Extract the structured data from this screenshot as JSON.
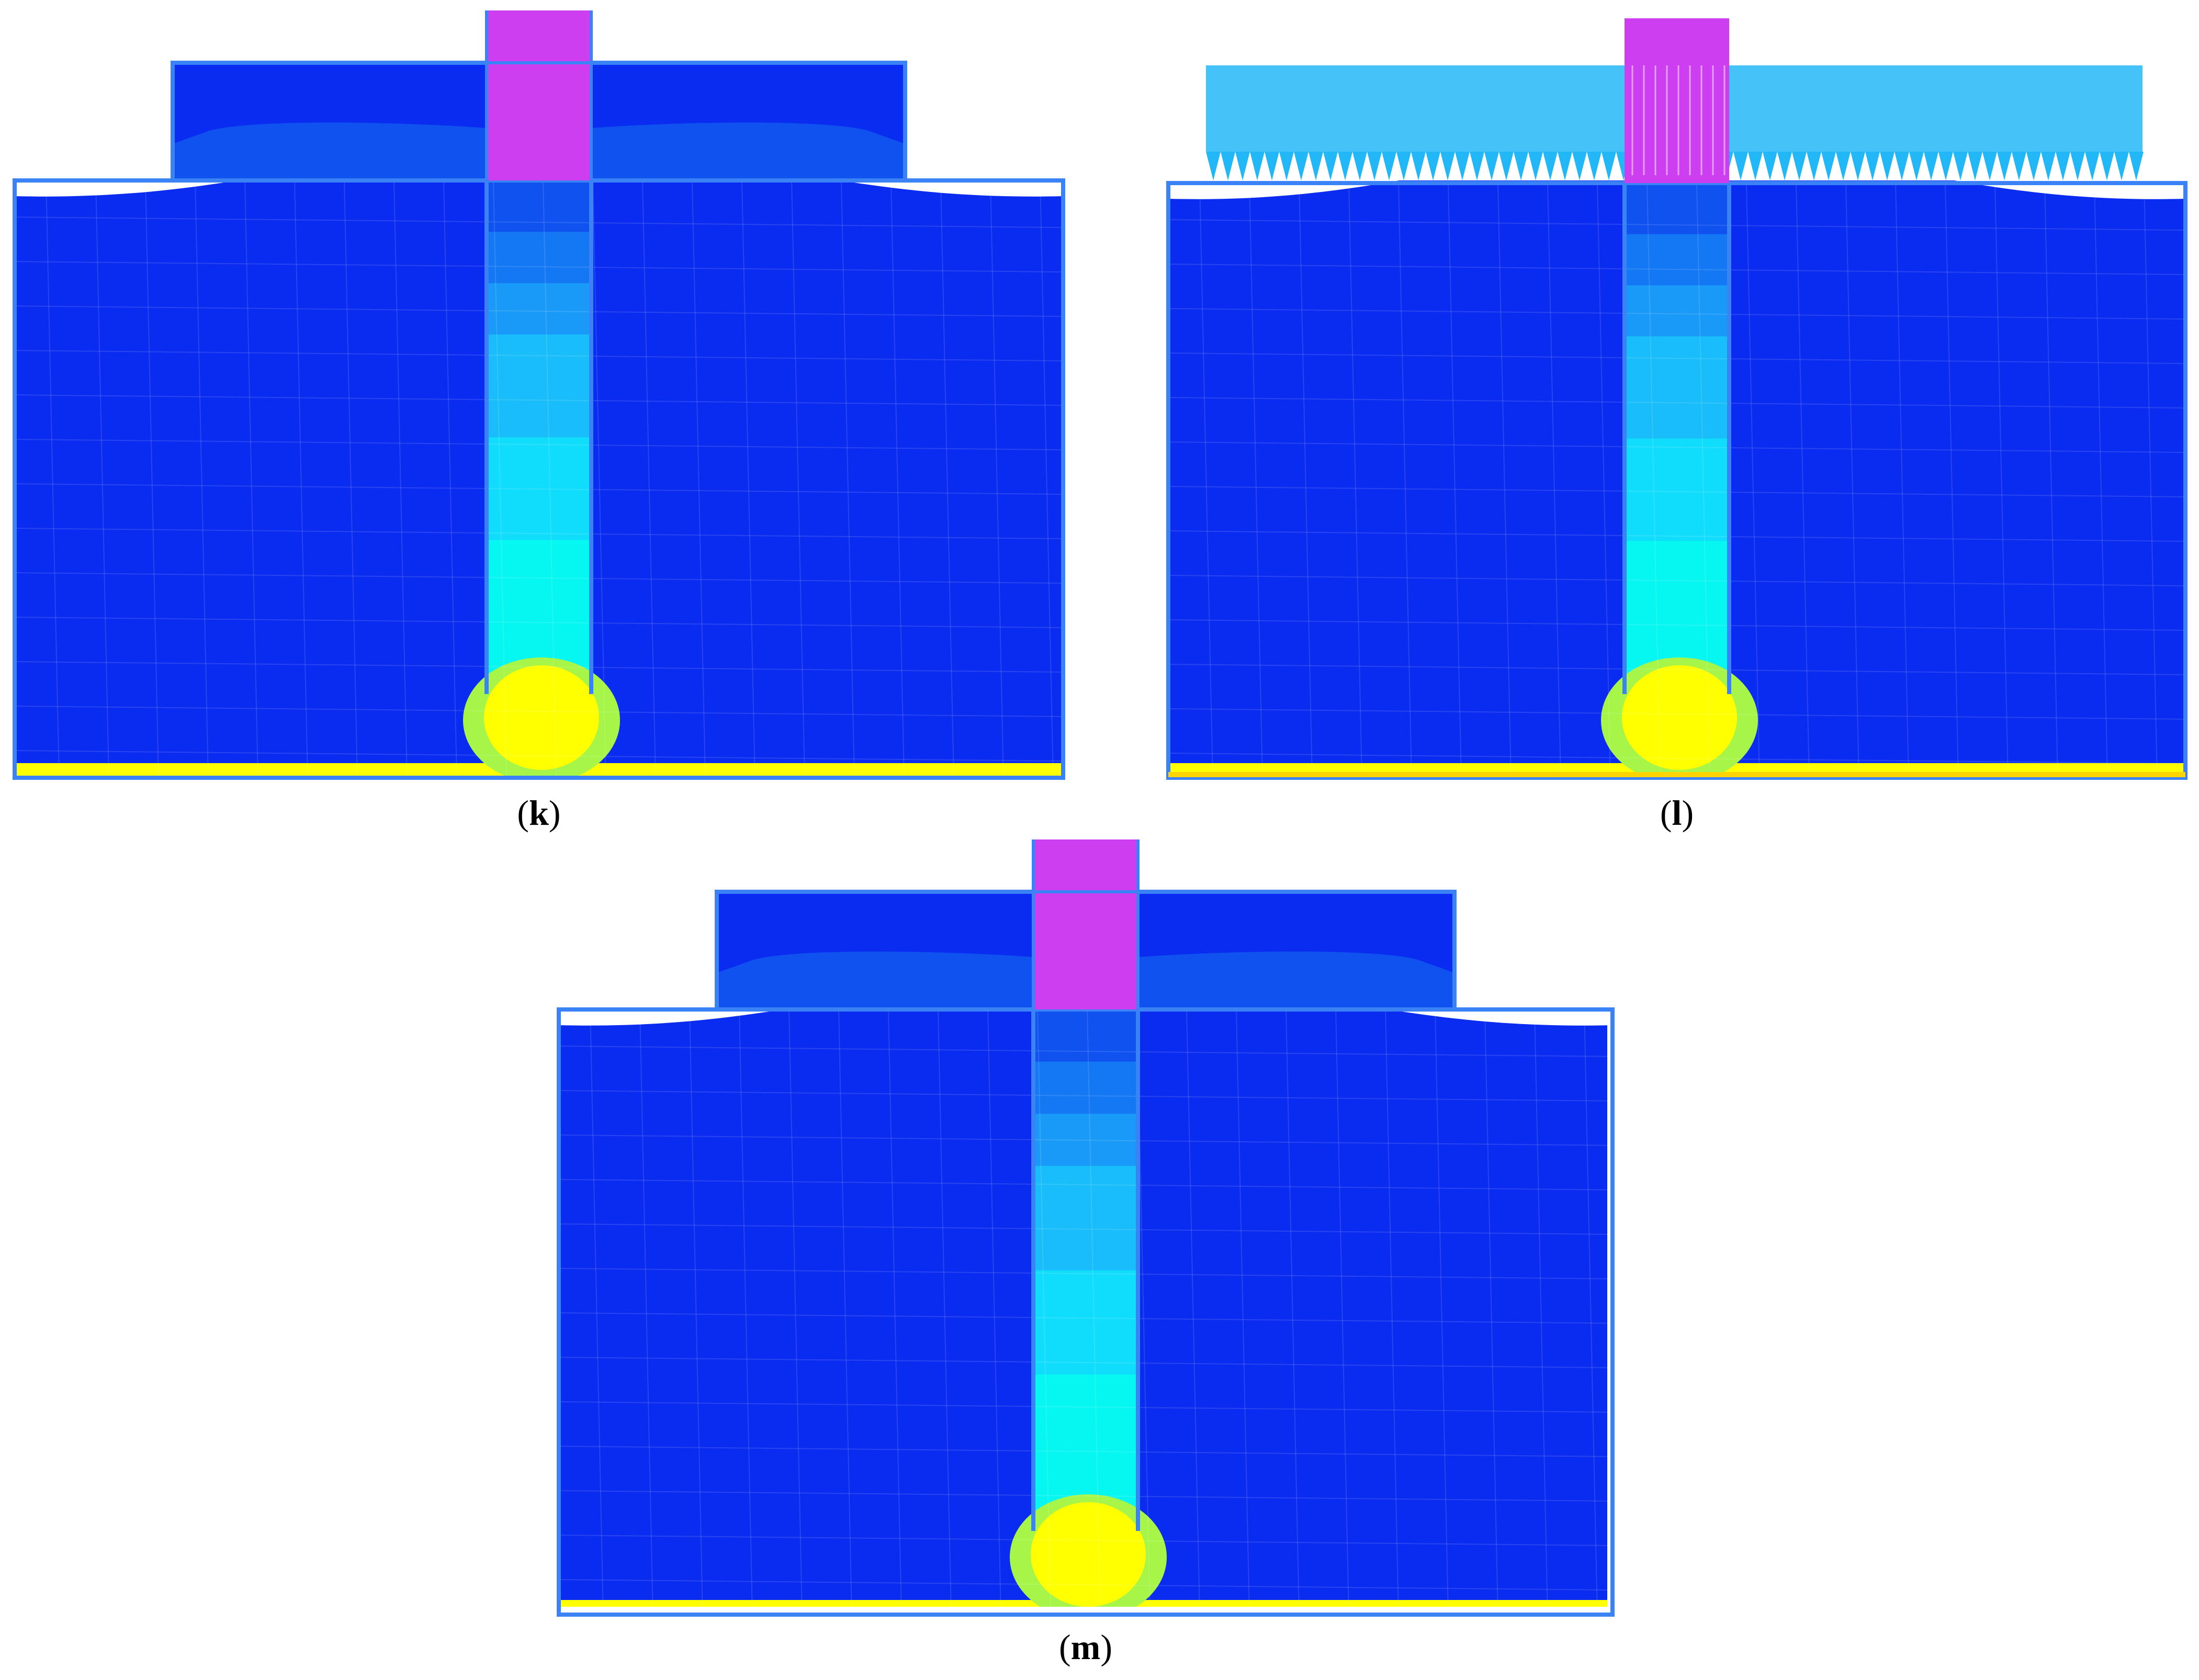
{
  "panels": [
    {
      "id": "k",
      "letter": "k",
      "open": "(",
      "close": ")",
      "variant": "cap"
    },
    {
      "id": "l",
      "letter": "l",
      "open": "(",
      "close": ")",
      "variant": "surcharge"
    },
    {
      "id": "m",
      "letter": "m",
      "open": "(",
      "close": ")",
      "variant": "cap"
    }
  ],
  "colors": {
    "band_top_to_bottom": [
      "#0a2cf0",
      "#0f52f0",
      "#1478f5",
      "#1a9af8",
      "#19bdfa",
      "#10dcfc",
      "#06f6f2",
      "#09f8c2",
      "#10f58a",
      "#52f56a",
      "#a6f548",
      "#d9fa35",
      "#ffff00"
    ],
    "pile_top": "#cc3ef0",
    "outline": "#3a82f5",
    "surcharge": "#22b8f7",
    "bulb": "#ffff00"
  }
}
